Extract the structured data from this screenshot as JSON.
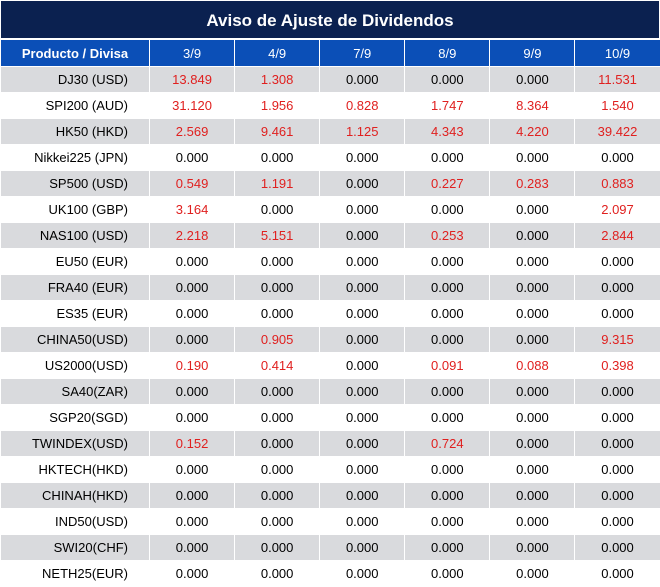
{
  "title": "Aviso de Ajuste de Dividendos",
  "header": {
    "product_label": "Producto / Divisa",
    "dates": [
      "3/9",
      "4/9",
      "7/9",
      "8/9",
      "9/9",
      "10/9"
    ]
  },
  "colors": {
    "title_bg": "#0b2150",
    "header_bg": "#0b4fb7",
    "row_alt_bg": "#d9dadd",
    "positive_value": "#e0201f"
  },
  "rows": [
    {
      "product": "DJ30 (USD)",
      "values": [
        "13.849",
        "1.308",
        "0.000",
        "0.000",
        "0.000",
        "11.531"
      ]
    },
    {
      "product": "SPI200 (AUD)",
      "values": [
        "31.120",
        "1.956",
        "0.828",
        "1.747",
        "8.364",
        "1.540"
      ]
    },
    {
      "product": "HK50 (HKD)",
      "values": [
        "2.569",
        "9.461",
        "1.125",
        "4.343",
        "4.220",
        "39.422"
      ]
    },
    {
      "product": "Nikkei225 (JPN)",
      "values": [
        "0.000",
        "0.000",
        "0.000",
        "0.000",
        "0.000",
        "0.000"
      ]
    },
    {
      "product": "SP500 (USD)",
      "values": [
        "0.549",
        "1.191",
        "0.000",
        "0.227",
        "0.283",
        "0.883"
      ]
    },
    {
      "product": "UK100 (GBP)",
      "values": [
        "3.164",
        "0.000",
        "0.000",
        "0.000",
        "0.000",
        "2.097"
      ]
    },
    {
      "product": "NAS100 (USD)",
      "values": [
        "2.218",
        "5.151",
        "0.000",
        "0.253",
        "0.000",
        "2.844"
      ]
    },
    {
      "product": "EU50 (EUR)",
      "values": [
        "0.000",
        "0.000",
        "0.000",
        "0.000",
        "0.000",
        "0.000"
      ]
    },
    {
      "product": "FRA40 (EUR)",
      "values": [
        "0.000",
        "0.000",
        "0.000",
        "0.000",
        "0.000",
        "0.000"
      ]
    },
    {
      "product": "ES35 (EUR)",
      "values": [
        "0.000",
        "0.000",
        "0.000",
        "0.000",
        "0.000",
        "0.000"
      ]
    },
    {
      "product": "CHINA50(USD)",
      "values": [
        "0.000",
        "0.905",
        "0.000",
        "0.000",
        "0.000",
        "9.315"
      ]
    },
    {
      "product": "US2000(USD)",
      "values": [
        "0.190",
        "0.414",
        "0.000",
        "0.091",
        "0.088",
        "0.398"
      ]
    },
    {
      "product": "SA40(ZAR)",
      "values": [
        "0.000",
        "0.000",
        "0.000",
        "0.000",
        "0.000",
        "0.000"
      ]
    },
    {
      "product": "SGP20(SGD)",
      "values": [
        "0.000",
        "0.000",
        "0.000",
        "0.000",
        "0.000",
        "0.000"
      ]
    },
    {
      "product": "TWINDEX(USD)",
      "values": [
        "0.152",
        "0.000",
        "0.000",
        "0.724",
        "0.000",
        "0.000"
      ]
    },
    {
      "product": "HKTECH(HKD)",
      "values": [
        "0.000",
        "0.000",
        "0.000",
        "0.000",
        "0.000",
        "0.000"
      ]
    },
    {
      "product": "CHINAH(HKD)",
      "values": [
        "0.000",
        "0.000",
        "0.000",
        "0.000",
        "0.000",
        "0.000"
      ]
    },
    {
      "product": "IND50(USD)",
      "values": [
        "0.000",
        "0.000",
        "0.000",
        "0.000",
        "0.000",
        "0.000"
      ]
    },
    {
      "product": "SWI20(CHF)",
      "values": [
        "0.000",
        "0.000",
        "0.000",
        "0.000",
        "0.000",
        "0.000"
      ]
    },
    {
      "product": "NETH25(EUR)",
      "values": [
        "0.000",
        "0.000",
        "0.000",
        "0.000",
        "0.000",
        "0.000"
      ]
    }
  ]
}
